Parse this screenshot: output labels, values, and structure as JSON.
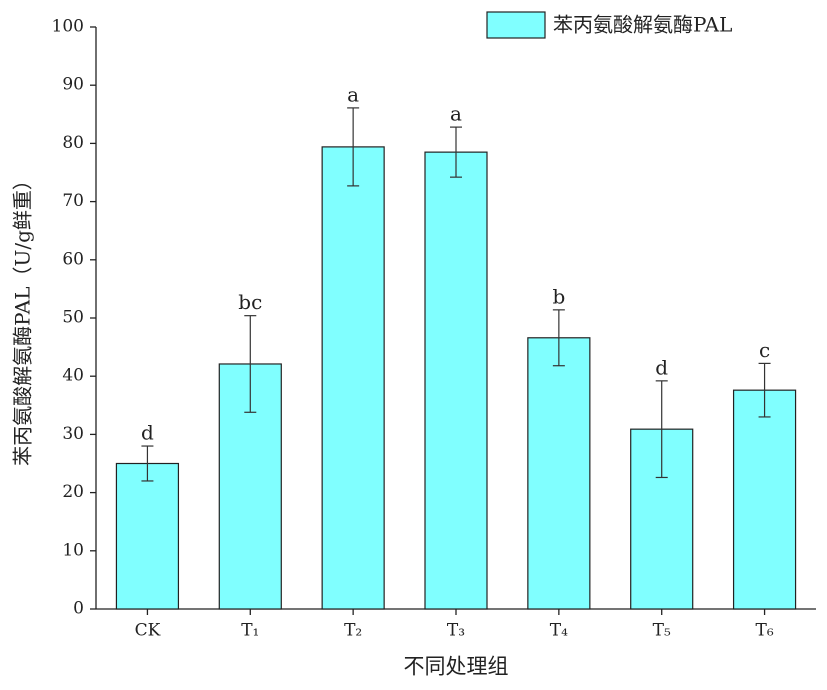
{
  "chart_data": {
    "type": "bar",
    "x_label": "不同处理组",
    "y_label": "苯丙氨酸解氨酶PAL（U/g鲜重）",
    "categories": [
      "CK",
      "T₁",
      "T₂",
      "T₃",
      "T₄",
      "T₅",
      "T₆"
    ],
    "series": [
      {
        "name": "苯丙氨酸解氨酶PAL",
        "color": "#80ffff",
        "values": [
          25,
          42.1,
          79.4,
          78.5,
          46.6,
          30.9,
          37.6
        ],
        "errors": [
          3,
          8.3,
          6.7,
          4.3,
          4.8,
          8.3,
          4.6
        ],
        "significance": [
          "d",
          "bc",
          "a",
          "a",
          "b",
          "d",
          "c"
        ]
      }
    ],
    "ylim": [
      0,
      100
    ],
    "yticks": [
      0,
      10,
      20,
      30,
      40,
      50,
      60,
      70,
      80,
      90,
      100
    ],
    "legend": "top-right",
    "grid": false
  }
}
